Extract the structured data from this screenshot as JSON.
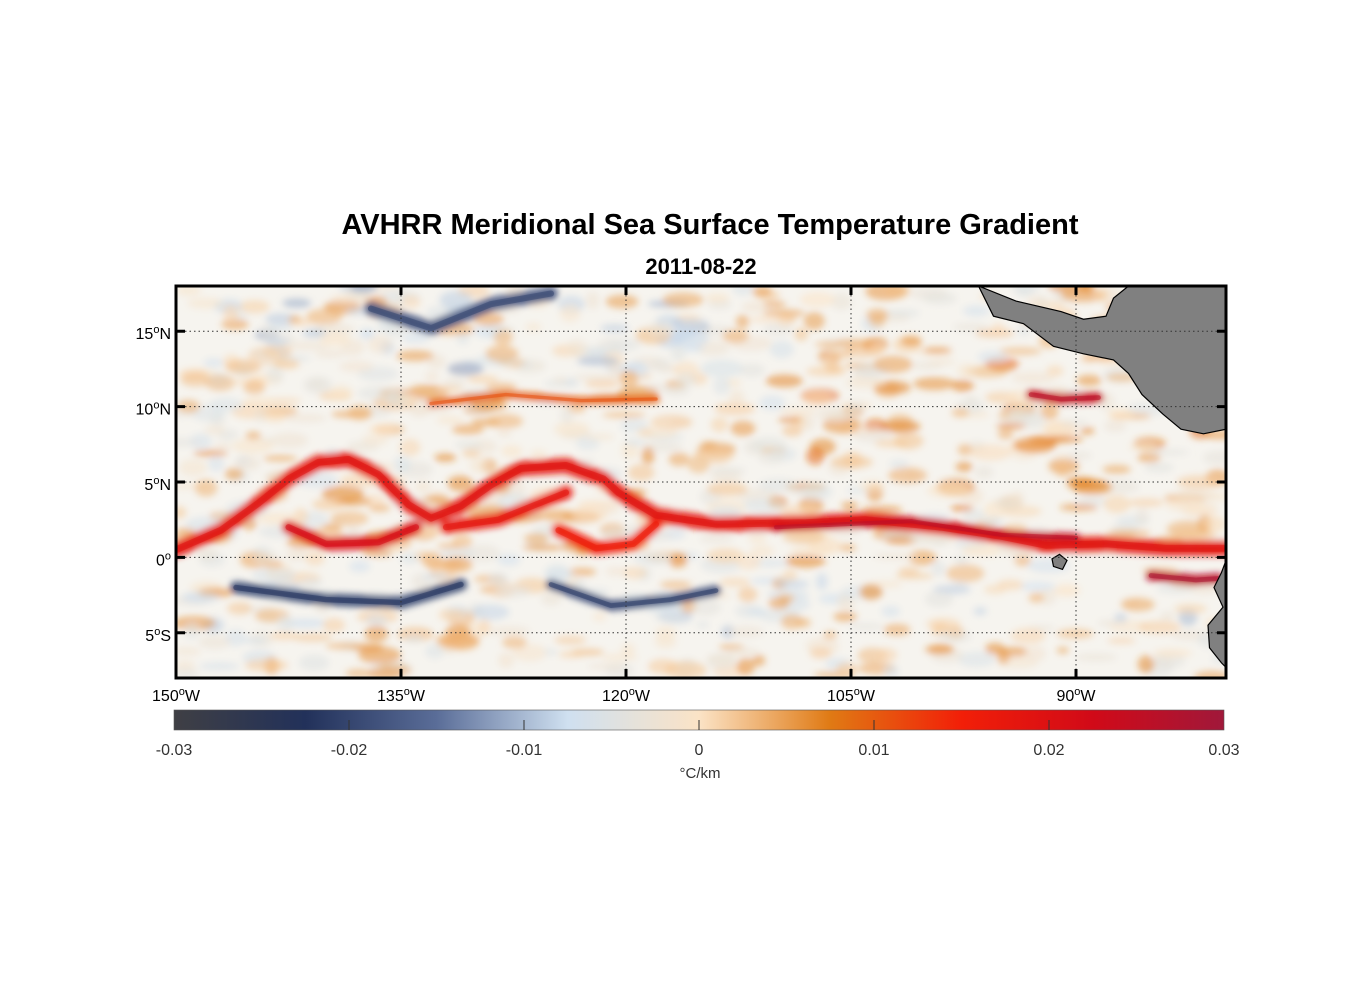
{
  "chart_data": {
    "type": "heatmap",
    "title": "AVHRR Meridional Sea Surface Temperature Gradient",
    "subtitle": "2011-08-22",
    "xlim": [
      -150,
      -80
    ],
    "ylim": [
      -8,
      18
    ],
    "x_ticks": [
      {
        "value": -150,
        "label": "150",
        "suffix": "W"
      },
      {
        "value": -135,
        "label": "135",
        "suffix": "W"
      },
      {
        "value": -120,
        "label": "120",
        "suffix": "W"
      },
      {
        "value": -105,
        "label": "105",
        "suffix": "W"
      },
      {
        "value": -90,
        "label": "90",
        "suffix": "W"
      }
    ],
    "y_ticks": [
      {
        "value": 15,
        "label": "15",
        "suffix": "N"
      },
      {
        "value": 10,
        "label": "10",
        "suffix": "N"
      },
      {
        "value": 5,
        "label": "5",
        "suffix": "N"
      },
      {
        "value": 0,
        "label": "0",
        "suffix": ""
      },
      {
        "value": -5,
        "label": "5",
        "suffix": "S"
      }
    ],
    "grid": true,
    "colorbar": {
      "range": [
        -0.03,
        0.03
      ],
      "ticks": [
        "-0.03",
        "-0.02",
        "-0.01",
        "0",
        "0.01",
        "0.02",
        "0.03"
      ],
      "tick_values": [
        -0.03,
        -0.02,
        -0.01,
        0,
        0.01,
        0.02,
        0.03
      ],
      "label": "°C/km",
      "colors": [
        "#3f3f44",
        "#22315a",
        "#5a6d98",
        "#cfe0f0",
        "#fbe3c6",
        "#e07a14",
        "#f21f08",
        "#d10a18",
        "#a0183a"
      ]
    },
    "land_color": "#808080",
    "features": [
      {
        "name": "equatorial-front",
        "value": 0.018,
        "points": [
          [
            -150,
            0.5
          ],
          [
            -147,
            1.8
          ],
          [
            -144.5,
            3.6
          ],
          [
            -142.5,
            5.2
          ],
          [
            -140.5,
            6.3
          ],
          [
            -138.5,
            6.5
          ],
          [
            -136.5,
            5.5
          ],
          [
            -134.5,
            3.5
          ],
          [
            -133,
            2.6
          ],
          [
            -131,
            3.4
          ],
          [
            -129,
            4.8
          ],
          [
            -127,
            5.9
          ],
          [
            -124,
            6.1
          ],
          [
            -121.5,
            5.2
          ],
          [
            -120.5,
            4.3
          ],
          [
            -118,
            2.8
          ],
          [
            -114,
            2.2
          ],
          [
            -108,
            2.3
          ],
          [
            -104,
            2.5
          ],
          [
            -99,
            2.0
          ],
          [
            -95,
            1.4
          ],
          [
            -92,
            0.8
          ],
          [
            -88,
            0.9
          ],
          [
            -84,
            0.6
          ],
          [
            -80,
            0.6
          ]
        ],
        "width": 1.0
      },
      {
        "name": "tiw-trough-1",
        "value": 0.02,
        "points": [
          [
            -142.5,
            2.0
          ],
          [
            -140,
            0.9
          ],
          [
            -136.5,
            1.0
          ],
          [
            -134,
            2.0
          ]
        ],
        "width": 0.9
      },
      {
        "name": "tiw-trough-2",
        "value": 0.017,
        "points": [
          [
            -132,
            2.0
          ],
          [
            -128.5,
            2.5
          ],
          [
            -126,
            3.5
          ],
          [
            -124,
            4.3
          ]
        ],
        "width": 0.9
      },
      {
        "name": "tiw-trough-3",
        "value": 0.015,
        "points": [
          [
            -124.5,
            1.8
          ],
          [
            -122,
            0.6
          ],
          [
            -119.5,
            0.9
          ],
          [
            -118,
            2.2
          ]
        ],
        "width": 0.9
      },
      {
        "name": "front-core-east",
        "value": 0.024,
        "points": [
          [
            -110,
            2.0
          ],
          [
            -101,
            2.4
          ],
          [
            -95,
            1.5
          ],
          [
            -90,
            1.3
          ]
        ],
        "width": 0.6
      },
      {
        "name": "gulf-panama-front",
        "value": 0.026,
        "points": [
          [
            -85,
            -1.2
          ],
          [
            -82,
            -1.5
          ],
          [
            -80.5,
            -1.4
          ]
        ],
        "width": 0.7
      },
      {
        "name": "coastal-front-10n",
        "value": 0.024,
        "points": [
          [
            -93,
            10.8
          ],
          [
            -91,
            10.5
          ],
          [
            -88.5,
            10.6
          ]
        ],
        "width": 0.7
      },
      {
        "name": "south-band-cold",
        "value": -0.02,
        "points": [
          [
            -146,
            -2.0
          ],
          [
            -140,
            -2.8
          ],
          [
            -135,
            -3.0
          ],
          [
            -131,
            -1.8
          ]
        ],
        "width": 0.8
      },
      {
        "name": "south-band-cold-2",
        "value": -0.019,
        "points": [
          [
            -125,
            -1.8
          ],
          [
            -121,
            -3.2
          ],
          [
            -117,
            -2.8
          ],
          [
            -114,
            -2.2
          ]
        ],
        "width": 0.7
      },
      {
        "name": "north-cold-cells",
        "value": -0.018,
        "points": [
          [
            -137,
            16.5
          ],
          [
            -133,
            15.2
          ],
          [
            -129,
            16.8
          ],
          [
            -125,
            17.5
          ]
        ],
        "width": 0.9
      },
      {
        "name": "warm-band-11n",
        "value": 0.01,
        "points": [
          [
            -133,
            10.2
          ],
          [
            -128,
            10.8
          ],
          [
            -123,
            10.4
          ],
          [
            -118,
            10.5
          ]
        ],
        "width": 0.5
      }
    ],
    "land": [
      {
        "name": "central-america",
        "points": [
          [
            -96.5,
            18
          ],
          [
            -94,
            17
          ],
          [
            -91,
            16.3
          ],
          [
            -89.5,
            15.8
          ],
          [
            -88,
            16
          ],
          [
            -87.5,
            17.2
          ],
          [
            -86.5,
            18
          ],
          [
            -80,
            18
          ],
          [
            -80,
            8.5
          ],
          [
            -81.5,
            8.2
          ],
          [
            -83,
            8.5
          ],
          [
            -84.2,
            9.5
          ],
          [
            -85.6,
            10.8
          ],
          [
            -86.5,
            12.2
          ],
          [
            -87.5,
            13.1
          ],
          [
            -89.5,
            13.5
          ],
          [
            -91.5,
            14.0
          ],
          [
            -93.5,
            15.5
          ],
          [
            -95.5,
            16.0
          ]
        ]
      },
      {
        "name": "south-america-coast",
        "points": [
          [
            -80,
            -0.2
          ],
          [
            -80.3,
            -1.0
          ],
          [
            -80.8,
            -2.0
          ],
          [
            -80.2,
            -3.3
          ],
          [
            -81.2,
            -4.5
          ],
          [
            -81.1,
            -6.0
          ],
          [
            -80.3,
            -7.0
          ],
          [
            -80,
            -7.3
          ]
        ]
      },
      {
        "name": "galapagos",
        "points": [
          [
            -91.6,
            -0.1
          ],
          [
            -91.1,
            0.2
          ],
          [
            -90.6,
            -0.2
          ],
          [
            -90.9,
            -0.8
          ],
          [
            -91.5,
            -0.6
          ]
        ]
      }
    ]
  }
}
